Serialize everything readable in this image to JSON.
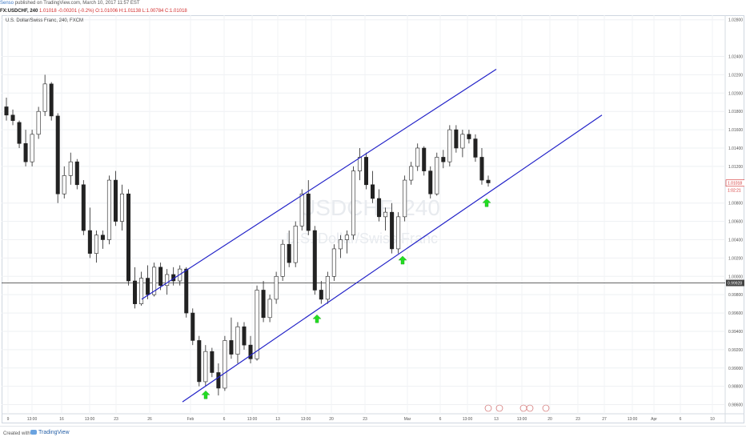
{
  "header": {
    "author": "Senso",
    "published": " published on TradingView.com, March 10, 2017 11:57 EST",
    "symbol": "FX:USDCHF, 240",
    "last": "1.01018",
    "change": "-0.00201 (-0.2%)",
    "ohlc": "O:1.01006 H:1.01138 L:1.00784 C:1.01018"
  },
  "chart_data": {
    "type": "candlestick",
    "title": "U.S. Dollar/Swiss Franc, 240, FXCM",
    "watermark_symbol": "USDCHF, 240",
    "watermark_name": "U.S. Dollar/Swiss Franc",
    "ylim": [
      0.985,
      1.0285
    ],
    "y_ticks": [
      "1.02800",
      "1.02400",
      "1.02200",
      "1.02000",
      "1.01800",
      "1.01600",
      "1.01400",
      "1.01200",
      "1.01018",
      "1.00800",
      "1.00600",
      "1.00400",
      "1.00200",
      "1.00000",
      "0.99928",
      "0.99800",
      "0.99600",
      "0.99400",
      "0.99200",
      "0.99000",
      "0.98800",
      "0.98600"
    ],
    "x_ticks": [
      "9",
      "13:00",
      "16",
      "13:00",
      "23",
      "26",
      "Feb",
      "6",
      "13:00",
      "13",
      "13:00",
      "20",
      "23",
      "Mar",
      "6",
      "13:00",
      "13",
      "13:00",
      "20",
      "23",
      "27",
      "13:00",
      "Apr",
      "6",
      "10"
    ],
    "last_price_label": "1.01018",
    "countdown_label": "1:02:21",
    "horizontal_line": {
      "price": 0.99928,
      "label": "0.99928"
    },
    "channel": {
      "lower_line": {
        "start": [
          "Jan 31",
          0.9863
        ],
        "end": [
          "Mar 27",
          1.0176
        ]
      },
      "upper_line": {
        "start": [
          "Jan 25",
          0.9975
        ],
        "end": [
          "Mar 13",
          1.0226
        ]
      }
    },
    "arrows": [
      "Feb 3",
      "Feb 16",
      "Feb 27",
      "Mar 10"
    ],
    "ohlc_approx": [
      [
        1.0185,
        1.0195,
        1.017,
        1.0176
      ],
      [
        1.0176,
        1.0182,
        1.0165,
        1.017
      ],
      [
        1.0168,
        1.017,
        1.014,
        1.0145
      ],
      [
        1.0145,
        1.016,
        1.012,
        1.0125
      ],
      [
        1.0125,
        1.016,
        1.012,
        1.0155
      ],
      [
        1.0155,
        1.0185,
        1.015,
        1.018
      ],
      [
        1.018,
        1.022,
        1.0175,
        1.021
      ],
      [
        1.021,
        1.0212,
        1.017,
        1.0175
      ],
      [
        1.0175,
        1.0178,
        1.008,
        1.009
      ],
      [
        1.009,
        1.012,
        1.0085,
        1.011
      ],
      [
        1.011,
        1.0135,
        1.01,
        1.0125
      ],
      [
        1.0125,
        1.0128,
        1.0095,
        1.01
      ],
      [
        1.01,
        1.0105,
        1.0045,
        1.005
      ],
      [
        1.005,
        1.0075,
        1.002,
        1.0025
      ],
      [
        1.0025,
        1.005,
        1.0015,
        1.0045
      ],
      [
        1.0045,
        1.005,
        1.003,
        1.004
      ],
      [
        1.004,
        1.011,
        1.0035,
        1.0105
      ],
      [
        1.0105,
        1.0115,
        1.0055,
        1.006
      ],
      [
        1.006,
        1.01,
        1.005,
        1.009
      ],
      [
        1.009,
        1.0095,
        0.999,
        0.9995
      ],
      [
        0.9995,
        1.001,
        0.9965,
        0.997
      ],
      [
        0.997,
        1.0005,
        0.9968,
        0.9998
      ],
      [
        0.9998,
        1.0012,
        0.9975,
        0.998
      ],
      [
        0.998,
        1.0015,
        0.9978,
        1.001
      ],
      [
        1.001,
        1.0015,
        0.9985,
        0.999
      ],
      [
        0.999,
        1.0008,
        0.998,
        1.0002
      ],
      [
        1.0002,
        1.001,
        0.999,
        0.9995
      ],
      [
        0.9995,
        1.0012,
        0.999,
        1.0008
      ],
      [
        1.0008,
        1.001,
        0.9955,
        0.996
      ],
      [
        0.996,
        0.9965,
        0.9925,
        0.993
      ],
      [
        0.993,
        0.9935,
        0.988,
        0.9885
      ],
      [
        0.9885,
        0.9925,
        0.988,
        0.9918
      ],
      [
        0.9918,
        0.9922,
        0.989,
        0.9895
      ],
      [
        0.9895,
        0.9905,
        0.987,
        0.9878
      ],
      [
        0.9878,
        0.9935,
        0.9875,
        0.993
      ],
      [
        0.993,
        0.9955,
        0.991,
        0.9915
      ],
      [
        0.9915,
        0.995,
        0.9905,
        0.9945
      ],
      [
        0.9945,
        0.995,
        0.992,
        0.9925
      ],
      [
        0.9925,
        0.9935,
        0.9905,
        0.991
      ],
      [
        0.991,
        0.999,
        0.9908,
        0.9985
      ],
      [
        0.9985,
        0.9995,
        0.995,
        0.9955
      ],
      [
        0.9955,
        0.998,
        0.995,
        0.9975
      ],
      [
        0.9975,
        1.0005,
        0.997,
        1.0
      ],
      [
        1.0,
        1.004,
        0.9995,
        1.0035
      ],
      [
        1.0035,
        1.005,
        1.001,
        1.0015
      ],
      [
        1.0015,
        1.006,
        1.001,
        1.0055
      ],
      [
        1.0055,
        1.0095,
        1.005,
        1.009
      ],
      [
        1.009,
        1.0105,
        1.0045,
        1.005
      ],
      [
        1.005,
        1.0055,
        0.998,
        0.9985
      ],
      [
        0.9985,
        0.9995,
        0.997,
        0.9975
      ],
      [
        0.9975,
        1.0005,
        0.997,
        1.0
      ],
      [
        1.0,
        1.0035,
        0.9995,
        1.003
      ],
      [
        1.003,
        1.0045,
        1.002,
        1.004
      ],
      [
        1.004,
        1.005,
        1.0025,
        1.0045
      ],
      [
        1.0045,
        1.012,
        1.004,
        1.0115
      ],
      [
        1.0115,
        1.014,
        1.0105,
        1.013
      ],
      [
        1.013,
        1.0135,
        1.0095,
        1.01
      ],
      [
        1.01,
        1.0115,
        1.008,
        1.0085
      ],
      [
        1.0085,
        1.0095,
        1.006,
        1.0065
      ],
      [
        1.0065,
        1.0075,
        1.005,
        1.007
      ],
      [
        1.007,
        1.008,
        1.0025,
        1.003
      ],
      [
        1.003,
        1.007,
        1.0025,
        1.0065
      ],
      [
        1.0065,
        1.011,
        1.006,
        1.0105
      ],
      [
        1.0105,
        1.0125,
        1.01,
        1.012
      ],
      [
        1.012,
        1.0145,
        1.0115,
        1.014
      ],
      [
        1.014,
        1.0142,
        1.011,
        1.0115
      ],
      [
        1.0115,
        1.012,
        1.0085,
        1.009
      ],
      [
        1.009,
        1.0135,
        1.0088,
        1.013
      ],
      [
        1.013,
        1.0138,
        1.0118,
        1.0125
      ],
      [
        1.0125,
        1.0165,
        1.012,
        1.016
      ],
      [
        1.016,
        1.0165,
        1.0135,
        1.014
      ],
      [
        1.014,
        1.016,
        1.013,
        1.0155
      ],
      [
        1.0155,
        1.016,
        1.0145,
        1.015
      ],
      [
        1.015,
        1.0155,
        1.0125,
        1.013
      ],
      [
        1.013,
        1.014,
        1.01,
        1.0105
      ],
      [
        1.0105,
        1.011,
        1.0098,
        1.0102
      ]
    ]
  },
  "footer": {
    "created": "Created with",
    "brand": "TradingView"
  }
}
